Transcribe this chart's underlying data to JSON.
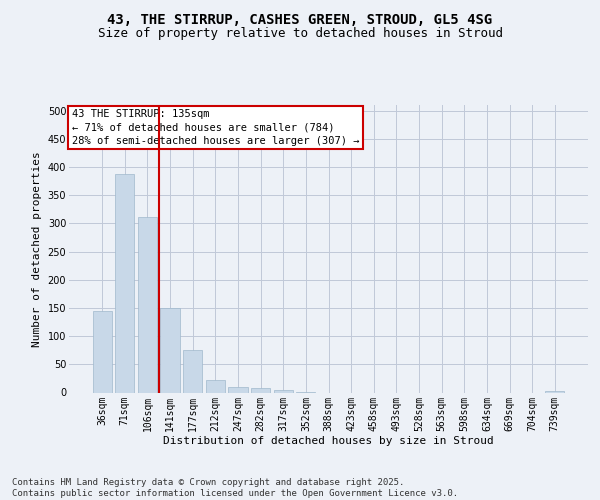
{
  "title_line1": "43, THE STIRRUP, CASHES GREEN, STROUD, GL5 4SG",
  "title_line2": "Size of property relative to detached houses in Stroud",
  "xlabel": "Distribution of detached houses by size in Stroud",
  "ylabel": "Number of detached properties",
  "categories": [
    "36sqm",
    "71sqm",
    "106sqm",
    "141sqm",
    "177sqm",
    "212sqm",
    "247sqm",
    "282sqm",
    "317sqm",
    "352sqm",
    "388sqm",
    "423sqm",
    "458sqm",
    "493sqm",
    "528sqm",
    "563sqm",
    "598sqm",
    "634sqm",
    "669sqm",
    "704sqm",
    "739sqm"
  ],
  "values": [
    145,
    387,
    311,
    150,
    75,
    22,
    10,
    8,
    4,
    1,
    0,
    0,
    0,
    0,
    0,
    0,
    0,
    0,
    0,
    0,
    3
  ],
  "bar_color": "#c8d8e8",
  "bar_edgecolor": "#a0b8cc",
  "grid_color": "#c0c8d8",
  "background_color": "#edf1f7",
  "marker_line_color": "#cc0000",
  "annotation_box_edgecolor": "#cc0000",
  "annotation_box_facecolor": "#ffffff",
  "annotation_title": "43 THE STIRRUP: 135sqm",
  "annotation_line1": "← 71% of detached houses are smaller (784)",
  "annotation_line2": "28% of semi-detached houses are larger (307) →",
  "ylim": [
    0,
    510
  ],
  "yticks": [
    0,
    50,
    100,
    150,
    200,
    250,
    300,
    350,
    400,
    450,
    500
  ],
  "red_line_x": 2.5,
  "footnote_line1": "Contains HM Land Registry data © Crown copyright and database right 2025.",
  "footnote_line2": "Contains public sector information licensed under the Open Government Licence v3.0.",
  "title_fontsize": 10,
  "subtitle_fontsize": 9,
  "axis_label_fontsize": 8,
  "tick_fontsize": 7,
  "annotation_fontsize": 7.5,
  "footnote_fontsize": 6.5
}
